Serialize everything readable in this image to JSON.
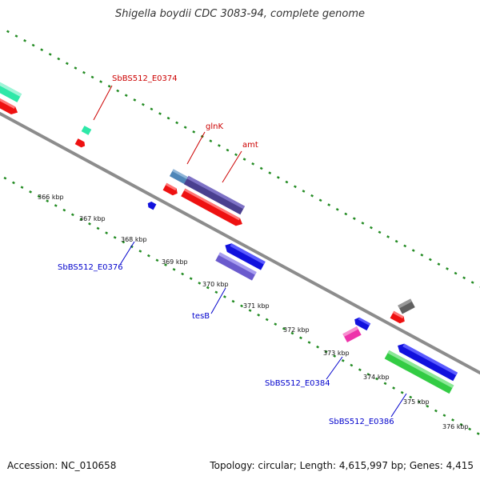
{
  "title": "Shigella boydii CDC 3083-94, complete genome",
  "footer": {
    "accession": "Accession: NC_010658",
    "summary": "Topology: circular; Length: 4,615,997 bp; Genes: 4,415"
  },
  "colors": {
    "backbone": "#8c8c8c",
    "ticks": "#228b22",
    "label_top": "#cc0000",
    "label_bottom": "#0000cc"
  },
  "ticks": [
    "366 kbp",
    "367 kbp",
    "368 kbp",
    "369 kbp",
    "370 kbp",
    "371 kbp",
    "372 kbp",
    "373 kbp",
    "374 kbp",
    "375 kbp",
    "376 kbp"
  ],
  "gene_labels": [
    {
      "id": "e0374",
      "text": "SbBS512_E0374",
      "strand": "top"
    },
    {
      "id": "glnk",
      "text": "glnK",
      "strand": "top"
    },
    {
      "id": "amt",
      "text": "amt",
      "strand": "top"
    },
    {
      "id": "e0376",
      "text": "SbBS512_E0376",
      "strand": "bottom"
    },
    {
      "id": "tesb",
      "text": "tesB",
      "strand": "bottom"
    },
    {
      "id": "e0384",
      "text": "SbBS512_E0384",
      "strand": "bottom"
    },
    {
      "id": "e0386",
      "text": "SbBS512_E0386",
      "strand": "bottom"
    }
  ],
  "features": [
    {
      "name": "feature-mint",
      "color": "#2ee8a8"
    },
    {
      "name": "feature-red",
      "color": "#ee1111"
    },
    {
      "name": "feature-steelblue",
      "color": "#4f86b8"
    },
    {
      "name": "feature-darkslateblue",
      "color": "#4a3f8f"
    },
    {
      "name": "feature-blue",
      "color": "#1111dd"
    },
    {
      "name": "feature-slateblue",
      "color": "#6a5acd"
    },
    {
      "name": "feature-magenta",
      "color": "#ee33aa"
    },
    {
      "name": "feature-gray",
      "color": "#606060"
    },
    {
      "name": "feature-green",
      "color": "#33cc44"
    }
  ]
}
